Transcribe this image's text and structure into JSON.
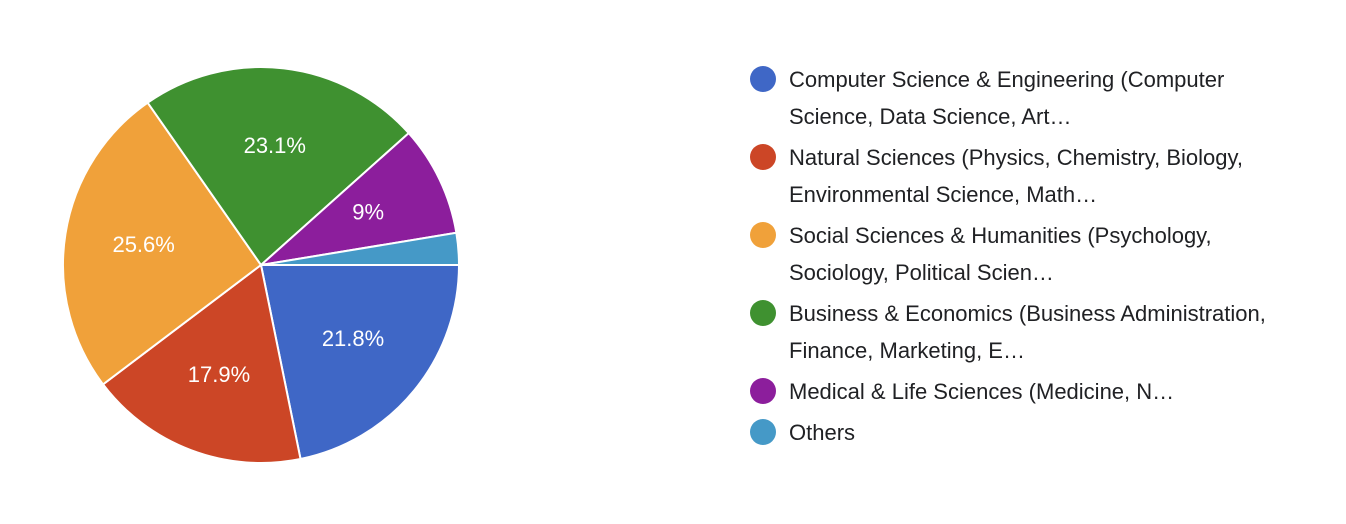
{
  "chart_data": {
    "type": "pie",
    "categories": [
      "Computer Science & Engineering (Computer Science, Data Science, Art…",
      "Natural Sciences (Physics, Chemistry, Biology, Environmental Science, Math…",
      "Social Sciences & Humanities (Psychology, Sociology, Political Scien…",
      "Business & Economics (Business Administration, Finance, Marketing, E…",
      "Medical & Life Sciences (Medicine, N…",
      "Others"
    ],
    "values": [
      21.8,
      17.9,
      25.6,
      23.1,
      9,
      2.6
    ],
    "value_labels": [
      "21.8%",
      "17.9%",
      "25.6%",
      "23.1%",
      "9%",
      null
    ],
    "colors": [
      "#3f67c6",
      "#cc4626",
      "#f0a13a",
      "#3f9130",
      "#8c1e9c",
      "#4599c7"
    ],
    "legend": "right"
  }
}
